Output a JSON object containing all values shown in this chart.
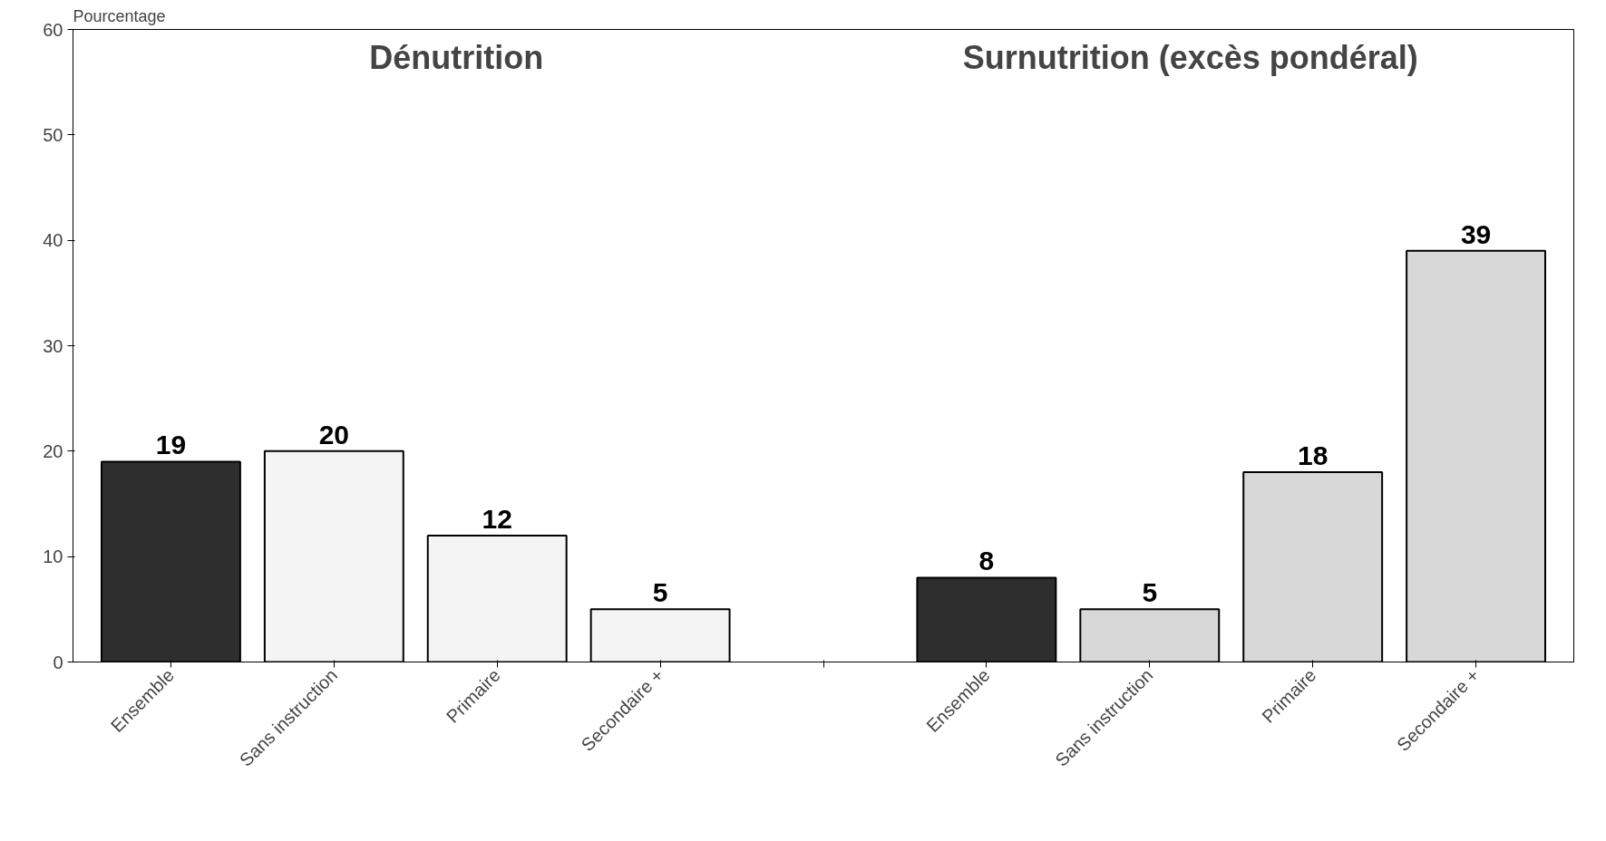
{
  "chart_data": {
    "type": "bar",
    "ylabel": "Pourcentage",
    "categories": [
      "Ensemble",
      "Sans instruction",
      "Primaire",
      "Secondaire +",
      null,
      "Ensemble",
      "Sans instruction",
      "Primaire",
      "Secondaire +"
    ],
    "values": [
      19,
      20,
      12,
      5,
      null,
      8,
      5,
      18,
      39
    ],
    "colors": [
      "#2e2e2e",
      "#f4f4f4",
      "#f4f4f4",
      "#f4f4f4",
      "#ffffff",
      "#2e2e2e",
      "#d8d8d8",
      "#d8d8d8",
      "#d8d8d8"
    ],
    "annotations": [
      "Dénutrition",
      "Surnutrition (excès pondéral)"
    ],
    "data_labels": true,
    "ylim": [
      0,
      60
    ],
    "yticks": [
      0,
      10,
      20,
      30,
      40,
      50,
      60
    ],
    "grid": false
  }
}
